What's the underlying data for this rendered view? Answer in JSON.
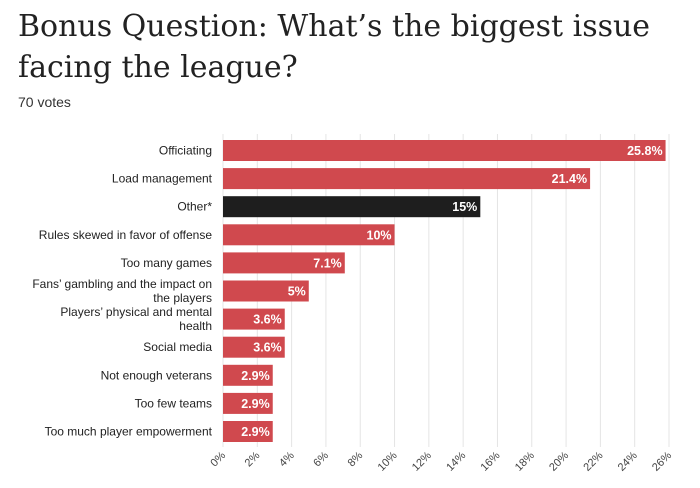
{
  "header": {
    "title": "Bonus Question: What’s the biggest issue facing the league?",
    "votes": "70 votes"
  },
  "colors": {
    "bar": "#d0494e",
    "highlight": "#1e1e1e",
    "grid": "#e4e4e4"
  },
  "chart_data": {
    "type": "bar",
    "orientation": "horizontal",
    "categories": [
      "Officiating",
      "Load management",
      "Other*",
      "Rules skewed in favor of offense",
      "Too many games",
      "Fans’ gambling and the impact on the players",
      "Players’ physical and mental health",
      "Social media",
      "Not enough veterans",
      "Too few teams",
      "Too much player empowerment"
    ],
    "values": [
      25.8,
      21.4,
      15,
      10,
      7.1,
      5,
      3.6,
      3.6,
      2.9,
      2.9,
      2.9
    ],
    "value_labels": [
      "25.8%",
      "21.4%",
      "15%",
      "10%",
      "7.1%",
      "5%",
      "3.6%",
      "3.6%",
      "2.9%",
      "2.9%",
      "2.9%"
    ],
    "highlight_index": 2,
    "xlim": [
      0,
      26
    ],
    "xticks": [
      "0%",
      "2%",
      "4%",
      "6%",
      "8%",
      "10%",
      "12%",
      "14%",
      "16%",
      "18%",
      "20%",
      "22%",
      "24%",
      "26%"
    ],
    "grid": true
  }
}
